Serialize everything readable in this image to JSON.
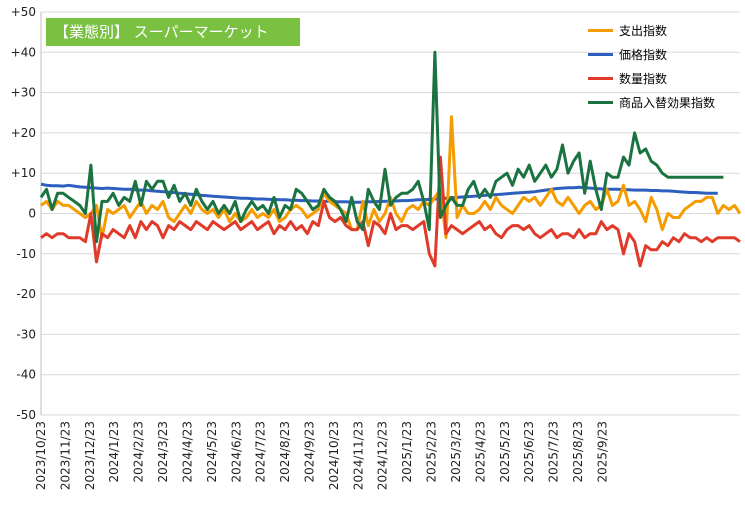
{
  "chart_data": {
    "type": "line",
    "title": "【業態別】 スーパーマーケット",
    "ylim": [
      -50,
      50
    ],
    "y_ticks": [
      "+50",
      "+40",
      "+30",
      "+20",
      "+10",
      "0",
      "-10",
      "-20",
      "-30",
      "-40",
      "-50"
    ],
    "y_tick_values": [
      50,
      40,
      30,
      20,
      10,
      0,
      -10,
      -20,
      -30,
      -40,
      -50
    ],
    "grid": true,
    "legend_position": "top-right",
    "x_tick_labels": [
      "2023/10/23",
      "2023/11/23",
      "2023/12/23",
      "2024/1/23",
      "2024/2/23",
      "2024/3/23",
      "2024/4/23",
      "2024/5/23",
      "2024/6/23",
      "2024/7/23",
      "2024/8/23",
      "2024/9/23",
      "2024/10/23",
      "2024/11/23",
      "2024/12/23",
      "2025/1/23",
      "2025/2/23",
      "2025/3/23",
      "2025/4/23",
      "2025/5/23",
      "2025/6/23",
      "2025/7/23",
      "2025/8/23",
      "2025/9/23"
    ],
    "points_per_month": 4.4,
    "series": [
      {
        "name": "支出指数",
        "color": "#f59c00",
        "values": [
          2,
          3,
          1,
          3,
          2,
          2,
          1,
          0,
          -1,
          0,
          2,
          -6,
          1,
          0,
          1,
          2,
          -1,
          1,
          3,
          0,
          2,
          1,
          3,
          -1,
          -2,
          0,
          2,
          0,
          3,
          1,
          0,
          1,
          -1,
          1,
          -2,
          0,
          -2,
          -1,
          1,
          -1,
          0,
          -1,
          1,
          -2,
          -1,
          1,
          2,
          1,
          -1,
          0,
          1,
          5,
          3,
          2,
          1,
          0,
          -4,
          -4,
          3,
          -3,
          1,
          -2,
          0,
          4,
          0,
          -2,
          1,
          2,
          1,
          3,
          2,
          4,
          6,
          -6,
          24,
          -1,
          2,
          0,
          0,
          1,
          3,
          1,
          4,
          2,
          1,
          0,
          2,
          4,
          3,
          4,
          2,
          4,
          6,
          3,
          2,
          4,
          2,
          0,
          2,
          3,
          1,
          2,
          6,
          2,
          3,
          7,
          2,
          3,
          1,
          -2,
          4,
          1,
          -4,
          0,
          -1,
          -1,
          1,
          2,
          3,
          3,
          4,
          4,
          0,
          2,
          1,
          2,
          0
        ]
      },
      {
        "name": "価格指数",
        "color": "#2e5fbf",
        "values": [
          7.3,
          7.0,
          6.9,
          6.9,
          6.8,
          7.0,
          6.8,
          6.6,
          6.5,
          6.4,
          6.3,
          6.2,
          6.3,
          6.2,
          6.1,
          6.0,
          6.0,
          5.9,
          5.8,
          5.8,
          5.6,
          5.5,
          5.4,
          5.3,
          5.2,
          5.0,
          4.9,
          4.8,
          4.7,
          4.5,
          4.4,
          4.3,
          4.2,
          4.1,
          4.0,
          3.9,
          3.8,
          3.8,
          3.7,
          3.6,
          3.6,
          3.5,
          3.5,
          3.4,
          3.4,
          3.3,
          3.3,
          3.2,
          3.2,
          3.1,
          3.1,
          3.0,
          3.0,
          2.9,
          2.9,
          2.9,
          2.8,
          2.8,
          2.8,
          2.9,
          2.9,
          3.0,
          3.0,
          3.1,
          3.1,
          3.2,
          3.2,
          3.3,
          3.4,
          3.4,
          3.5,
          3.6,
          3.7,
          3.8,
          3.9,
          4.0,
          4.1,
          4.2,
          4.3,
          4.4,
          4.5,
          4.6,
          4.7,
          4.8,
          4.9,
          5.0,
          5.1,
          5.2,
          5.3,
          5.4,
          5.6,
          5.8,
          6.0,
          6.2,
          6.3,
          6.4,
          6.4,
          6.5,
          6.4,
          6.3,
          6.2,
          6.1,
          6.0,
          6.0,
          6.0,
          5.9,
          5.9,
          5.8,
          5.8,
          5.8,
          5.7,
          5.7,
          5.6,
          5.6,
          5.5,
          5.4,
          5.3,
          5.2,
          5.2,
          5.1,
          5.0,
          5.0,
          5.0
        ]
      },
      {
        "name": "数量指数",
        "color": "#e03a2a",
        "values": [
          -6,
          -5,
          -6,
          -5,
          -5,
          -6,
          -6,
          -6,
          -7,
          0,
          -12,
          -5,
          -6,
          -4,
          -5,
          -6,
          -3,
          -6,
          -2,
          -4,
          -2,
          -3,
          -6,
          -3,
          -4,
          -2,
          -3,
          -4,
          -2,
          -3,
          -4,
          -2,
          -3,
          -4,
          -3,
          -2,
          -4,
          -3,
          -2,
          -4,
          -3,
          -2,
          -5,
          -3,
          -4,
          -2,
          -4,
          -3,
          -5,
          -2,
          -3,
          3,
          -1,
          -2,
          -1,
          -3,
          -4,
          -4,
          -2,
          -8,
          -2,
          -3,
          -5,
          0,
          -4,
          -3,
          -3,
          -4,
          -3,
          -2,
          -10,
          -13,
          14,
          -5,
          -3,
          -4,
          -5,
          -4,
          -3,
          -2,
          -4,
          -3,
          -5,
          -6,
          -4,
          -3,
          -3,
          -4,
          -3,
          -5,
          -6,
          -5,
          -4,
          -6,
          -5,
          -5,
          -6,
          -4,
          -6,
          -5,
          -5,
          -2,
          -4,
          -3,
          -4,
          -10,
          -5,
          -7,
          -13,
          -8,
          -9,
          -9,
          -7,
          -8,
          -6,
          -7,
          -5,
          -6,
          -6,
          -7,
          -6,
          -7,
          -6,
          -6,
          -6,
          -6,
          -7
        ]
      },
      {
        "name": "商品入替効果指数",
        "color": "#1a7340",
        "values": [
          4,
          6,
          1,
          5,
          5,
          4,
          3,
          2,
          0,
          12,
          -7,
          3,
          3,
          5,
          2,
          4,
          3,
          8,
          2,
          8,
          6,
          8,
          8,
          4,
          7,
          3,
          5,
          2,
          6,
          3,
          1,
          3,
          0,
          2,
          0,
          3,
          -2,
          1,
          3,
          1,
          2,
          0,
          4,
          -1,
          2,
          1,
          6,
          5,
          3,
          1,
          2,
          6,
          4,
          3,
          1,
          -2,
          4,
          -2,
          -4,
          6,
          3,
          1,
          11,
          2,
          4,
          5,
          5,
          6,
          8,
          3,
          -4,
          40,
          -1,
          2,
          4,
          2,
          2,
          6,
          8,
          4,
          6,
          4,
          8,
          9,
          10,
          7,
          11,
          9,
          12,
          8,
          10,
          12,
          9,
          11,
          17,
          10,
          13,
          15,
          5,
          13,
          6,
          1,
          10,
          9,
          9,
          14,
          12,
          20,
          15,
          16,
          13,
          12,
          10,
          9,
          9,
          9,
          9,
          9,
          9,
          9,
          9,
          9,
          9,
          9
        ]
      }
    ]
  }
}
